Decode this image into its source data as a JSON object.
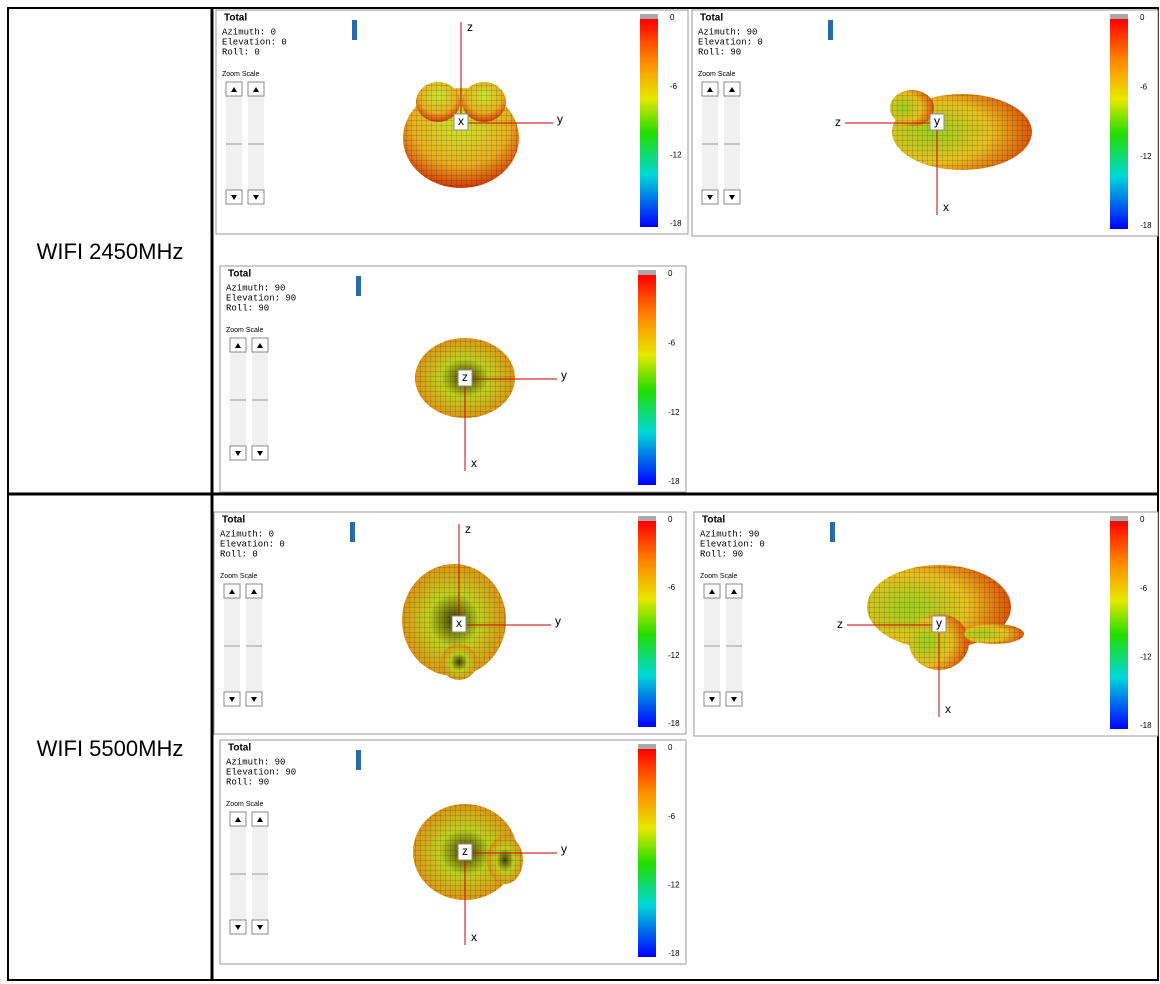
{
  "rows": [
    {
      "label": "WIFI 2450MHz",
      "panels": [
        {
          "title": "Total",
          "orientation": [
            "Azimuth: 0",
            "Elevation: 0",
            "Roll: 0"
          ],
          "zoom_label": "Zoom Scale",
          "colorbar_ticks": [
            0,
            -6,
            -12,
            -18
          ],
          "axes": {
            "up": "z",
            "right": "y",
            "center": "x"
          }
        },
        {
          "title": "Total",
          "orientation": [
            "Azimuth: 90",
            "Elevation: 0",
            "Roll: 90"
          ],
          "zoom_label": "Zoom Scale",
          "colorbar_ticks": [
            0,
            -6,
            -12,
            -18
          ],
          "axes": {
            "left": "z",
            "down": "x",
            "center": "y"
          }
        },
        {
          "title": "Total",
          "orientation": [
            "Azimuth: 90",
            "Elevation: 90",
            "Roll: 90"
          ],
          "zoom_label": "Zoom Scale",
          "colorbar_ticks": [
            0,
            -6,
            -12,
            -18
          ],
          "axes": {
            "right": "y",
            "down": "x",
            "center": "z"
          }
        }
      ]
    },
    {
      "label": "WIFI 5500MHz",
      "panels": [
        {
          "title": "Total",
          "orientation": [
            "Azimuth: 0",
            "Elevation: 0",
            "Roll: 0"
          ],
          "zoom_label": "Zoom Scale",
          "colorbar_ticks": [
            0,
            -6,
            -12,
            -18
          ],
          "axes": {
            "up": "z",
            "right": "y",
            "center": "x"
          }
        },
        {
          "title": "Total",
          "orientation": [
            "Azimuth: 90",
            "Elevation: 0",
            "Roll: 90"
          ],
          "zoom_label": "Zoom Scale",
          "colorbar_ticks": [
            0,
            -6,
            -12,
            -18
          ],
          "axes": {
            "left": "z",
            "down": "x",
            "center": "y"
          }
        },
        {
          "title": "Total",
          "orientation": [
            "Azimuth: 90",
            "Elevation: 90",
            "Roll: 90"
          ],
          "zoom_label": "Zoom Scale",
          "colorbar_ticks": [
            0,
            -6,
            -12,
            -18
          ],
          "axes": {
            "right": "y",
            "down": "x",
            "center": "z"
          }
        }
      ]
    }
  ]
}
